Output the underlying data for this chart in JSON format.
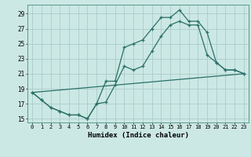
{
  "xlabel": "Humidex (Indice chaleur)",
  "background_color": "#cce8e4",
  "grid_color": "#aaccca",
  "line_color": "#2a7068",
  "xlim": [
    -0.5,
    23.5
  ],
  "ylim": [
    14.5,
    30.2
  ],
  "xticks": [
    0,
    1,
    2,
    3,
    4,
    5,
    6,
    7,
    8,
    9,
    10,
    11,
    12,
    13,
    14,
    15,
    16,
    17,
    18,
    19,
    20,
    21,
    22,
    23
  ],
  "xtick_labels": [
    "0",
    "1",
    "2",
    "3",
    "4",
    "5",
    "6",
    "7",
    "8",
    "9",
    "10",
    "11",
    "12",
    "13",
    "14",
    "15",
    "16",
    "17",
    "18",
    "19",
    "20",
    "21",
    "22",
    "23"
  ],
  "yticks": [
    15,
    17,
    19,
    21,
    23,
    25,
    27,
    29
  ],
  "line1_x": [
    0,
    1,
    2,
    3,
    4,
    5,
    6,
    7,
    8,
    9,
    10,
    11,
    12,
    13,
    14,
    15,
    16,
    17,
    18,
    19,
    20,
    21,
    22,
    23
  ],
  "line1_y": [
    18.5,
    17.5,
    16.5,
    16.0,
    15.5,
    15.5,
    15.0,
    17.0,
    20.0,
    20.0,
    24.5,
    25.0,
    25.5,
    27.0,
    28.5,
    28.5,
    29.5,
    28.0,
    28.0,
    26.5,
    22.5,
    21.5,
    21.5,
    21.0
  ],
  "line2_x": [
    0,
    1,
    2,
    3,
    4,
    5,
    6,
    7,
    8,
    9,
    10,
    11,
    12,
    13,
    14,
    15,
    16,
    17,
    18,
    19,
    20,
    21,
    22,
    23
  ],
  "line2_y": [
    18.5,
    17.5,
    16.5,
    16.0,
    15.5,
    15.5,
    15.0,
    17.0,
    17.2,
    19.5,
    22.0,
    21.5,
    22.0,
    24.0,
    26.0,
    27.5,
    28.0,
    27.5,
    27.5,
    23.5,
    22.5,
    21.5,
    21.5,
    21.0
  ],
  "line3_x": [
    0,
    23
  ],
  "line3_y": [
    18.5,
    21.0
  ]
}
